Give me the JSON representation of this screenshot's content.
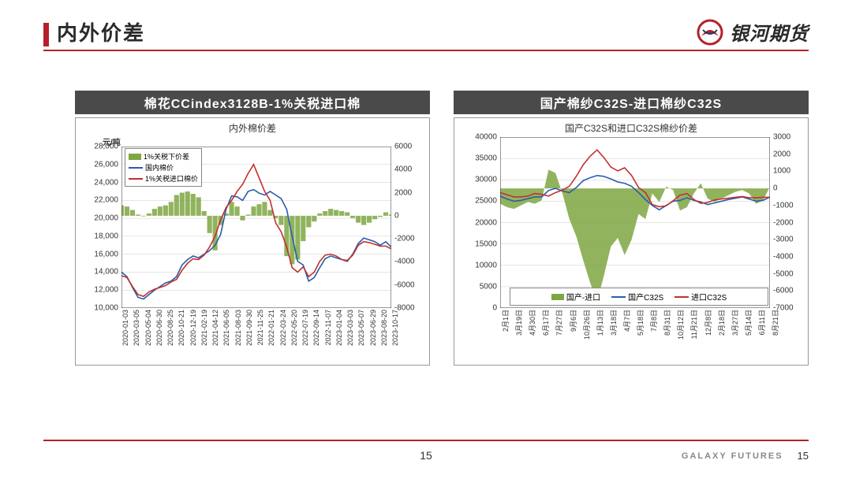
{
  "page": {
    "title": "内外价差",
    "brand_cn": "银河期货",
    "brand_en": "GALAXY FUTURES",
    "page_num_center": "15",
    "page_num_right": "15",
    "accent_color": "#b5202a",
    "header_bar_color": "#4a4a4a"
  },
  "chart_left": {
    "header": "棉花CCindex3128B-1%关税进口棉",
    "inner_title": "内外棉价差",
    "y_unit": "元/吨",
    "type": "dual-axis-line-bar",
    "background_color": "#ffffff",
    "grid_color": "#cccccc",
    "y_left": {
      "min": 10000,
      "max": 28000,
      "ticks": [
        10000,
        12000,
        14000,
        16000,
        18000,
        20000,
        22000,
        24000,
        26000,
        28000
      ],
      "tick_labels": [
        "10,000",
        "12,000",
        "14,000",
        "16,000",
        "18,000",
        "20,000",
        "22,000",
        "24,000",
        "26,000",
        "28,000"
      ]
    },
    "y_right": {
      "min": -8000,
      "max": 6000,
      "ticks": [
        -8000,
        -6000,
        -4000,
        -2000,
        0,
        2000,
        4000,
        6000
      ]
    },
    "x_labels": [
      "2020-01-03",
      "2020-03-05",
      "2020-05-04",
      "2020-06-30",
      "2020-08-25",
      "2020-10-21",
      "2020-12-19",
      "2021-02-19",
      "2021-04-12",
      "2021-06-05",
      "2021-08-03",
      "2021-09-30",
      "2021-11-25",
      "2022-01-21",
      "2022-03-24",
      "2022-05-20",
      "2022-07-19",
      "2022-09-14",
      "2022-11-07",
      "2023-01-04",
      "2023-03-03",
      "2023-05-07",
      "2023-06-29",
      "2023-08-20",
      "2023-10-17"
    ],
    "legend": [
      {
        "label": "1%关税下价差",
        "type": "bar",
        "color": "#7ea642"
      },
      {
        "label": "国内棉价",
        "type": "line",
        "color": "#2a5caa"
      },
      {
        "label": "1%关税进口棉价",
        "type": "line",
        "color": "#c23030"
      }
    ],
    "bars_spread": [
      900,
      800,
      500,
      100,
      -50,
      200,
      600,
      800,
      900,
      1200,
      1800,
      2000,
      2100,
      1900,
      1600,
      400,
      -1500,
      -3000,
      -800,
      200,
      1200,
      800,
      -400,
      100,
      800,
      1000,
      1200,
      500,
      -200,
      -800,
      -3500,
      -4200,
      -3800,
      -2200,
      -1000,
      -500,
      200,
      400,
      600,
      500,
      400,
      300,
      -200,
      -600,
      -800,
      -600,
      -300,
      -100,
      300,
      100
    ],
    "line_domestic": [
      14000,
      13500,
      12300,
      11200,
      11000,
      11500,
      12000,
      12400,
      12800,
      13000,
      13500,
      14800,
      15400,
      15800,
      15600,
      16000,
      16400,
      17000,
      18200,
      21000,
      22500,
      22400,
      22000,
      23000,
      23200,
      22800,
      22600,
      23000,
      22600,
      22200,
      21000,
      18000,
      15200,
      14800,
      13000,
      13400,
      14500,
      15500,
      15800,
      15600,
      15400,
      15200,
      16000,
      17200,
      17800,
      17600,
      17400,
      17000,
      17400,
      16800
    ],
    "line_import": [
      13600,
      13400,
      12400,
      11500,
      11300,
      11800,
      12100,
      12300,
      12500,
      12900,
      13200,
      14200,
      15000,
      15500,
      15400,
      15900,
      16800,
      18000,
      19800,
      21200,
      22000,
      23000,
      23800,
      25000,
      26000,
      24500,
      23000,
      22000,
      19500,
      18500,
      16800,
      14500,
      14000,
      14600,
      13500,
      14000,
      15200,
      15900,
      16000,
      15800,
      15400,
      15300,
      15900,
      17000,
      17400,
      17300,
      17100,
      16900,
      16900,
      16600
    ]
  },
  "chart_right": {
    "header": "国产棉纱C32S-进口棉纱C32S",
    "inner_title": "国产C32S和进口C32S棉纱价差",
    "type": "dual-axis-line-area",
    "background_color": "#ffffff",
    "grid_color": "#cccccc",
    "y_left": {
      "min": 0,
      "max": 40000,
      "ticks": [
        0,
        5000,
        10000,
        15000,
        20000,
        25000,
        30000,
        35000,
        40000
      ]
    },
    "y_right": {
      "min": -7000,
      "max": 3000,
      "ticks": [
        -7000,
        -6000,
        -5000,
        -4000,
        -3000,
        -2000,
        -1000,
        0,
        1000,
        2000,
        3000
      ]
    },
    "x_labels": [
      "2月1日",
      "3月19日",
      "4月30日",
      "6月17日",
      "7月27日",
      "9月6日",
      "10月26日",
      "1月13日",
      "3月18日",
      "4月7日",
      "5月18日",
      "7月8日",
      "8月31日",
      "10月12日",
      "11月21日",
      "12月8日",
      "2月18日",
      "3月27日",
      "5月14日",
      "6月11日",
      "8月21日"
    ],
    "legend": [
      {
        "label": "国产-进口",
        "type": "area",
        "color": "#7ea642"
      },
      {
        "label": "国产C32S",
        "type": "line",
        "color": "#2a5caa"
      },
      {
        "label": "进口C32S",
        "type": "line",
        "color": "#c23030"
      }
    ],
    "area_spread": [
      -900,
      -1100,
      -1200,
      -1000,
      -800,
      -900,
      -700,
      1100,
      900,
      -300,
      -1800,
      -2800,
      -4200,
      -5500,
      -6600,
      -5100,
      -3400,
      -2900,
      -3900,
      -3000,
      -1500,
      -1800,
      -300,
      -800,
      100,
      -100,
      -1300,
      -1100,
      -300,
      300,
      -600,
      -800,
      -600,
      -400,
      -200,
      -100,
      -300,
      -900,
      -700,
      100
    ],
    "line_domestic": [
      26200,
      25500,
      25000,
      25200,
      25600,
      26000,
      26000,
      27500,
      28000,
      27400,
      27000,
      28200,
      29800,
      30500,
      31000,
      30800,
      30200,
      29500,
      29200,
      28500,
      27000,
      25400,
      24000,
      23000,
      24000,
      25000,
      25200,
      25800,
      25200,
      24800,
      24200,
      24600,
      25000,
      25400,
      25700,
      26000,
      25500,
      25000,
      25200,
      26000
    ],
    "line_import": [
      27000,
      26500,
      26000,
      26000,
      26200,
      26800,
      26600,
      26200,
      27000,
      27600,
      28500,
      30800,
      33500,
      35500,
      37000,
      35200,
      33000,
      32100,
      32800,
      31000,
      28200,
      27000,
      24200,
      23700,
      23900,
      25100,
      26400,
      26800,
      25400,
      24500,
      24700,
      25300,
      25500,
      25700,
      25900,
      26100,
      25800,
      25800,
      25900,
      25900
    ]
  }
}
